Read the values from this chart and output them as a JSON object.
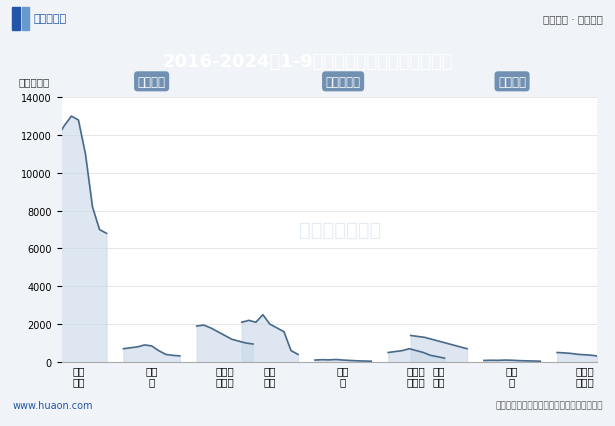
{
  "title": "2016-2024年1-9月吉林省房地产施工面积情况",
  "unit_label": "单位：万㎡",
  "header_text_left": "华经情报网",
  "header_text_right": "专业严谨 · 客观科学",
  "footer_left": "www.huaon.com",
  "footer_right": "数据来源：国家统计局；华经产业研究院整理",
  "watermark": "华经产业研究院",
  "groups": [
    "施工面积",
    "新开工面积",
    "竣工面积"
  ],
  "sub_cats": [
    "商品\n住宅",
    "办公\n楼",
    "商业营\n业用房"
  ],
  "ylim": [
    0,
    14000
  ],
  "yticks": [
    0,
    2000,
    4000,
    6000,
    8000,
    10000,
    12000,
    14000
  ],
  "bg_color": "#f0f4f8",
  "title_bg_color": "#3a5a8c",
  "title_text_color": "#ffffff",
  "header_bg_color": "#ffffff",
  "plot_bg_color": "#ffffff",
  "label_box_color": "#5b7fa6",
  "label_text_color": "#ffffff",
  "line_color": "#4a6a8a",
  "fill_top_color": "#c8d8e8",
  "fill_bottom_color": "#e8f0f8",
  "series_施工面积_商品住宅": [
    11800,
    11900,
    12500,
    13000,
    12800,
    11000,
    8200,
    7000,
    6800
  ],
  "series_施工面积_办公楼": [
    700,
    750,
    800,
    900,
    850,
    600,
    400,
    350,
    320
  ],
  "series_施工面积_商业营业用房": [
    1900,
    1950,
    1800,
    1600,
    1400,
    1200,
    1100,
    1000,
    950
  ],
  "series_新开工面积_商品住宅": [
    2100,
    2200,
    2100,
    2500,
    2000,
    1800,
    1600,
    600,
    400
  ],
  "series_新开工面积_办公楼": [
    100,
    120,
    110,
    130,
    100,
    80,
    60,
    50,
    40
  ],
  "series_新开工面积_商业营业用房": [
    500,
    550,
    600,
    700,
    600,
    500,
    350,
    280,
    200
  ],
  "series_竣工面积_商品住宅": [
    1400,
    1350,
    1300,
    1200,
    1100,
    1000,
    900,
    800,
    700
  ],
  "series_竣工面积_办公楼": [
    80,
    90,
    85,
    100,
    90,
    70,
    60,
    50,
    40
  ],
  "series_竣工面积_商业营业用房": [
    500,
    480,
    450,
    400,
    380,
    350,
    300,
    250,
    200
  ]
}
